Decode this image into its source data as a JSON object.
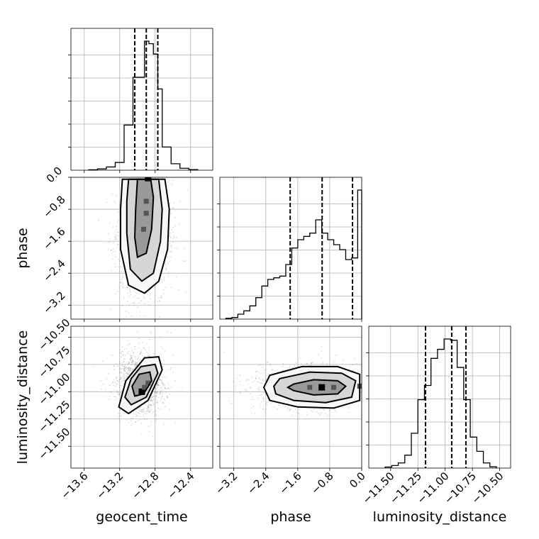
{
  "chart_data": {
    "type": "corner",
    "params": [
      {
        "name": "geocent_time",
        "xlabel": "geocent_time",
        "range": [
          -13.75,
          -12.15
        ],
        "ticks": [
          -13.6,
          -13.2,
          -12.8,
          -12.4
        ],
        "tick_labels": [
          "−13.6",
          "−13.2",
          "−12.8",
          "−12.4"
        ],
        "quantiles": [
          -13.03,
          -12.9,
          -12.77
        ],
        "hist": {
          "edges": [
            -13.55,
            -13.45,
            -13.35,
            -13.25,
            -13.15,
            -13.05,
            -12.97,
            -12.92,
            -12.87,
            -12.82,
            -12.77,
            -12.72,
            -12.62,
            -12.52,
            -12.42,
            -12.32
          ],
          "counts": [
            0.3,
            1.0,
            2.5,
            6,
            35,
            72,
            72,
            100,
            98,
            90,
            63,
            18,
            5,
            1.5,
            0.5
          ]
        }
      },
      {
        "name": "phase",
        "xlabel": "phase",
        "ylabel": "phase",
        "range": [
          -3.55,
          0.0
        ],
        "ticks": [
          -3.2,
          -2.4,
          -1.6,
          -0.8,
          0.0
        ],
        "tick_labels": [
          "−3.2",
          "−2.4",
          "−1.6",
          "−0.8",
          "0.0"
        ],
        "quantiles": [
          -1.79,
          -0.99,
          -0.23
        ],
        "hist": {
          "edges": [
            -3.4,
            -3.25,
            -3.1,
            -2.95,
            -2.8,
            -2.65,
            -2.5,
            -2.35,
            -2.2,
            -2.05,
            -1.9,
            -1.75,
            -1.6,
            -1.45,
            -1.3,
            -1.15,
            -1.0,
            -0.85,
            -0.7,
            -0.55,
            -0.4,
            -0.25,
            -0.1,
            0.0
          ],
          "counts": [
            0.5,
            1,
            3,
            5,
            8,
            13,
            20,
            24,
            25,
            26,
            33,
            43,
            48,
            50,
            52,
            60,
            52,
            48,
            45,
            42,
            36,
            37,
            78
          ]
        }
      },
      {
        "name": "luminosity_distance",
        "xlabel": "luminosity_distance",
        "ylabel": "luminosity_distance",
        "range": [
          -11.7,
          -10.4
        ],
        "ticks": [
          -11.5,
          -11.25,
          -11.0,
          -10.75,
          -10.5
        ],
        "tick_labels": [
          "−11.50",
          "−11.25",
          "−11.00",
          "−10.75",
          "−10.50"
        ],
        "quantiles": [
          -11.18,
          -10.94,
          -10.81
        ],
        "hist": {
          "edges": [
            -11.55,
            -11.49,
            -11.43,
            -11.37,
            -11.31,
            -11.25,
            -11.19,
            -11.13,
            -11.07,
            -11.01,
            -10.95,
            -10.89,
            -10.83,
            -10.77,
            -10.71,
            -10.65,
            -10.59,
            -10.53
          ],
          "counts": [
            0.8,
            2,
            4,
            10,
            27,
            53,
            64,
            85,
            92,
            100,
            99,
            78,
            53,
            24,
            13,
            4,
            1
          ]
        }
      }
    ],
    "pairs": [
      {
        "x": "geocent_time",
        "y": "phase",
        "contours": [
          [
            [
              -13.0,
              -0.05
            ],
            [
              -12.85,
              -0.05
            ],
            [
              -12.82,
              -0.5
            ],
            [
              -12.84,
              -1.3
            ],
            [
              -12.9,
              -1.9
            ],
            [
              -13.0,
              -2.0
            ],
            [
              -13.03,
              -1.5
            ],
            [
              -13.02,
              -0.8
            ]
          ],
          [
            [
              -13.1,
              -0.05
            ],
            [
              -12.76,
              -0.05
            ],
            [
              -12.72,
              -0.8
            ],
            [
              -12.74,
              -1.6
            ],
            [
              -12.82,
              -2.4
            ],
            [
              -12.95,
              -2.6
            ],
            [
              -13.08,
              -2.3
            ],
            [
              -13.12,
              -1.4
            ],
            [
              -13.12,
              -0.6
            ]
          ],
          [
            [
              -13.17,
              -0.05
            ],
            [
              -12.69,
              -0.05
            ],
            [
              -12.64,
              -0.8
            ],
            [
              -12.66,
              -1.8
            ],
            [
              -12.76,
              -2.6
            ],
            [
              -12.92,
              -2.9
            ],
            [
              -13.1,
              -2.7
            ],
            [
              -13.19,
              -1.8
            ],
            [
              -13.19,
              -0.8
            ]
          ]
        ],
        "density_peaks": [
          [
            -12.88,
            -0.02
          ],
          [
            -12.9,
            -0.9
          ],
          [
            -12.93,
            -1.3
          ],
          [
            -12.9,
            -0.6
          ]
        ]
      },
      {
        "x": "geocent_time",
        "y": "luminosity_distance",
        "contours": [
          [
            [
              -12.98,
              -10.84
            ],
            [
              -12.86,
              -10.82
            ],
            [
              -12.84,
              -10.9
            ],
            [
              -12.93,
              -11.02
            ],
            [
              -13.03,
              -11.04
            ],
            [
              -13.06,
              -10.95
            ]
          ],
          [
            [
              -12.96,
              -10.77
            ],
            [
              -12.8,
              -10.75
            ],
            [
              -12.77,
              -10.83
            ],
            [
              -12.9,
              -11.05
            ],
            [
              -13.07,
              -11.12
            ],
            [
              -13.14,
              -11.05
            ],
            [
              -13.07,
              -10.88
            ]
          ],
          [
            [
              -12.92,
              -10.69
            ],
            [
              -12.76,
              -10.68
            ],
            [
              -12.72,
              -10.8
            ],
            [
              -12.88,
              -11.08
            ],
            [
              -13.1,
              -11.2
            ],
            [
              -13.21,
              -11.14
            ],
            [
              -13.13,
              -10.9
            ]
          ]
        ],
        "density_peaks": [
          [
            -12.95,
            -11.0
          ],
          [
            -12.88,
            -10.92
          ],
          [
            -12.92,
            -10.96
          ]
        ]
      },
      {
        "x": "phase",
        "y": "luminosity_distance",
        "contours": [
          [
            [
              -1.7,
              -10.93
            ],
            [
              -1.2,
              -10.89
            ],
            [
              -0.6,
              -10.9
            ],
            [
              -0.4,
              -10.95
            ],
            [
              -0.6,
              -11.02
            ],
            [
              -1.2,
              -11.03
            ],
            [
              -1.7,
              -10.99
            ],
            [
              -1.85,
              -10.96
            ]
          ],
          [
            [
              -2.05,
              -10.88
            ],
            [
              -1.3,
              -10.82
            ],
            [
              -0.5,
              -10.83
            ],
            [
              -0.15,
              -10.9
            ],
            [
              -0.25,
              -11.05
            ],
            [
              -0.9,
              -11.1
            ],
            [
              -1.7,
              -11.08
            ],
            [
              -2.15,
              -11.02
            ],
            [
              -2.2,
              -10.95
            ]
          ],
          [
            [
              -2.3,
              -10.85
            ],
            [
              -1.5,
              -10.77
            ],
            [
              -0.6,
              -10.77
            ],
            [
              -0.05,
              -10.84
            ],
            [
              -0.05,
              -11.08
            ],
            [
              -0.7,
              -11.15
            ],
            [
              -1.6,
              -11.14
            ],
            [
              -2.3,
              -11.08
            ],
            [
              -2.45,
              -10.96
            ]
          ]
        ],
        "density_peaks": [
          [
            -1.0,
            -10.96
          ],
          [
            -0.05,
            -10.95
          ],
          [
            -1.3,
            -10.96
          ],
          [
            -0.7,
            -10.96
          ]
        ]
      }
    ],
    "grid": true
  }
}
